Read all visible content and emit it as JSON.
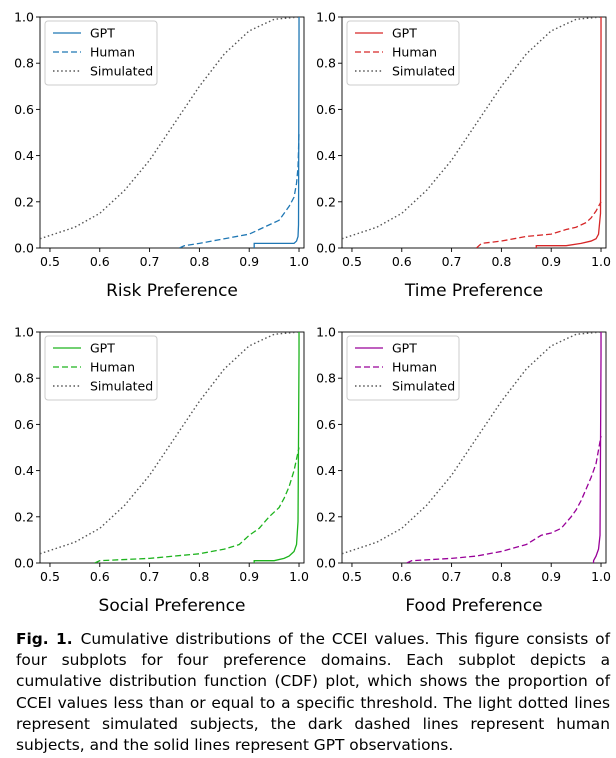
{
  "figure": {
    "caption_label": "Fig. 1.",
    "caption_text": "Cumulative distributions of the CCEI values. This figure consists of four subplots for four preference domains. Each subplot depicts a cumulative distribution function (CDF) plot, which shows the proportion of CCEI values less than or equal to a specific threshold. The light dotted lines represent simulated subjects, the dark dashed lines represent human subjects, and the solid lines represent GPT observations."
  },
  "chart_data": [
    {
      "type": "line",
      "title": "Risk Preference",
      "xlim": [
        0.48,
        1.01
      ],
      "ylim": [
        0,
        1
      ],
      "xticks": [
        0.5,
        0.6,
        0.7,
        0.8,
        0.9,
        1.0
      ],
      "yticks": [
        0.0,
        0.2,
        0.4,
        0.6,
        0.8,
        1.0
      ],
      "legend": "top-left",
      "color": "#1f77b4",
      "series": [
        {
          "name": "GPT",
          "style": "solid",
          "x": [
            0.91,
            0.91,
            0.99,
            0.995,
            0.998,
            0.999,
            1.0,
            1.0
          ],
          "y": [
            0.0,
            0.02,
            0.02,
            0.03,
            0.05,
            0.1,
            0.9,
            1.0
          ]
        },
        {
          "name": "Human",
          "style": "dashed",
          "x": [
            0.76,
            0.77,
            0.8,
            0.85,
            0.9,
            0.92,
            0.94,
            0.96,
            0.97,
            0.98,
            0.99,
            0.995,
            0.998,
            1.0
          ],
          "y": [
            0.0,
            0.01,
            0.02,
            0.04,
            0.06,
            0.08,
            0.1,
            0.12,
            0.15,
            0.18,
            0.22,
            0.28,
            0.35,
            0.5
          ]
        },
        {
          "name": "Simulated",
          "style": "dotted",
          "x": [
            0.48,
            0.55,
            0.6,
            0.65,
            0.7,
            0.75,
            0.8,
            0.85,
            0.9,
            0.95,
            1.0
          ],
          "y": [
            0.04,
            0.09,
            0.15,
            0.25,
            0.38,
            0.54,
            0.7,
            0.84,
            0.94,
            0.99,
            1.0
          ]
        }
      ]
    },
    {
      "type": "line",
      "title": "Time Preference",
      "xlim": [
        0.48,
        1.01
      ],
      "ylim": [
        0,
        1
      ],
      "xticks": [
        0.5,
        0.6,
        0.7,
        0.8,
        0.9,
        1.0
      ],
      "yticks": [
        0.0,
        0.2,
        0.4,
        0.6,
        0.8,
        1.0
      ],
      "legend": "top-left",
      "color": "#d62728",
      "series": [
        {
          "name": "GPT",
          "style": "solid",
          "x": [
            0.87,
            0.87,
            0.93,
            0.96,
            0.98,
            0.99,
            0.995,
            0.999,
            1.0,
            1.0
          ],
          "y": [
            0.0,
            0.01,
            0.01,
            0.02,
            0.03,
            0.04,
            0.06,
            0.15,
            0.9,
            1.0
          ]
        },
        {
          "name": "Human",
          "style": "dashed",
          "x": [
            0.75,
            0.76,
            0.8,
            0.85,
            0.9,
            0.93,
            0.95,
            0.97,
            0.98,
            0.99,
            0.995,
            1.0
          ],
          "y": [
            0.0,
            0.02,
            0.03,
            0.05,
            0.06,
            0.08,
            0.09,
            0.11,
            0.13,
            0.16,
            0.18,
            0.2
          ]
        },
        {
          "name": "Simulated",
          "style": "dotted",
          "x": [
            0.48,
            0.55,
            0.6,
            0.65,
            0.7,
            0.75,
            0.8,
            0.85,
            0.9,
            0.95,
            1.0
          ],
          "y": [
            0.04,
            0.09,
            0.15,
            0.25,
            0.38,
            0.54,
            0.7,
            0.84,
            0.94,
            0.99,
            1.0
          ]
        }
      ]
    },
    {
      "type": "line",
      "title": "Social Preference",
      "xlim": [
        0.48,
        1.01
      ],
      "ylim": [
        0,
        1
      ],
      "xticks": [
        0.5,
        0.6,
        0.7,
        0.8,
        0.9,
        1.0
      ],
      "yticks": [
        0.0,
        0.2,
        0.4,
        0.6,
        0.8,
        1.0
      ],
      "legend": "top-left",
      "color": "#1db31d",
      "series": [
        {
          "name": "GPT",
          "style": "solid",
          "x": [
            0.91,
            0.91,
            0.95,
            0.97,
            0.98,
            0.99,
            0.995,
            0.998,
            1.0,
            1.0
          ],
          "y": [
            0.0,
            0.01,
            0.01,
            0.02,
            0.03,
            0.05,
            0.08,
            0.18,
            0.9,
            1.0
          ]
        },
        {
          "name": "Human",
          "style": "dashed",
          "x": [
            0.59,
            0.6,
            0.7,
            0.75,
            0.8,
            0.85,
            0.88,
            0.9,
            0.92,
            0.94,
            0.96,
            0.97,
            0.98,
            0.99,
            0.995,
            1.0
          ],
          "y": [
            0.0,
            0.01,
            0.02,
            0.03,
            0.04,
            0.06,
            0.08,
            0.12,
            0.15,
            0.2,
            0.24,
            0.28,
            0.33,
            0.4,
            0.45,
            0.5
          ]
        },
        {
          "name": "Simulated",
          "style": "dotted",
          "x": [
            0.48,
            0.55,
            0.6,
            0.65,
            0.7,
            0.75,
            0.8,
            0.85,
            0.9,
            0.95,
            1.0
          ],
          "y": [
            0.04,
            0.09,
            0.15,
            0.25,
            0.38,
            0.54,
            0.7,
            0.84,
            0.94,
            0.99,
            1.0
          ]
        }
      ]
    },
    {
      "type": "line",
      "title": "Food Preference",
      "xlim": [
        0.48,
        1.01
      ],
      "ylim": [
        0,
        1
      ],
      "xticks": [
        0.5,
        0.6,
        0.7,
        0.8,
        0.9,
        1.0
      ],
      "yticks": [
        0.0,
        0.2,
        0.4,
        0.6,
        0.8,
        1.0
      ],
      "legend": "top-left",
      "color": "#990099",
      "series": [
        {
          "name": "GPT",
          "style": "solid",
          "x": [
            0.985,
            0.985,
            0.99,
            0.995,
            0.998,
            1.0,
            1.0
          ],
          "y": [
            0.0,
            0.01,
            0.03,
            0.06,
            0.12,
            0.9,
            1.0
          ]
        },
        {
          "name": "Human",
          "style": "dashed",
          "x": [
            0.61,
            0.62,
            0.7,
            0.75,
            0.8,
            0.85,
            0.88,
            0.9,
            0.92,
            0.94,
            0.95,
            0.96,
            0.97,
            0.98,
            0.99,
            0.995,
            1.0
          ],
          "y": [
            0.0,
            0.01,
            0.02,
            0.03,
            0.05,
            0.08,
            0.12,
            0.13,
            0.15,
            0.2,
            0.23,
            0.27,
            0.32,
            0.37,
            0.43,
            0.49,
            0.55
          ]
        },
        {
          "name": "Simulated",
          "style": "dotted",
          "x": [
            0.48,
            0.55,
            0.6,
            0.65,
            0.7,
            0.75,
            0.8,
            0.85,
            0.9,
            0.95,
            1.0
          ],
          "y": [
            0.04,
            0.09,
            0.15,
            0.25,
            0.38,
            0.54,
            0.7,
            0.84,
            0.94,
            0.99,
            1.0
          ]
        }
      ]
    }
  ]
}
